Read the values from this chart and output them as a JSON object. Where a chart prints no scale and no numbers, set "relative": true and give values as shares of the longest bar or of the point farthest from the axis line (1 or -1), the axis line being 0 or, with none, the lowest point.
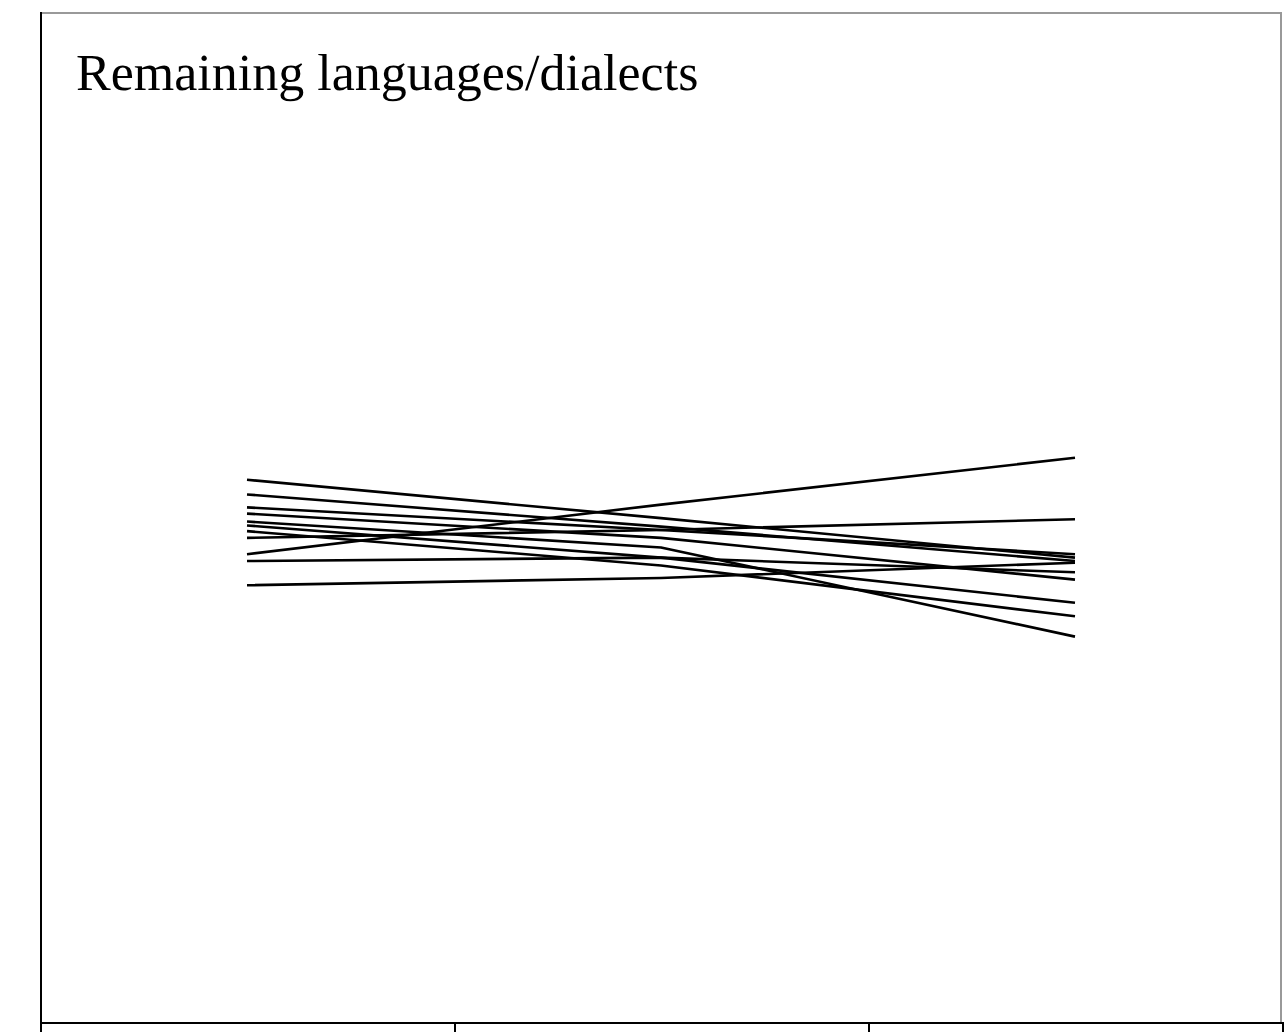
{
  "chart_data": {
    "type": "line",
    "title": "Remaining languages/dialects",
    "relative": true,
    "categories": [
      null,
      null,
      null
    ],
    "legend": false,
    "marker": "none",
    "line_style": "solid",
    "series": [
      {
        "color": "#000000",
        "values": [
          0.961,
          0.893,
          0.823
        ]
      },
      {
        "color": "#000000",
        "values": [
          0.935,
          0.878,
          0.817
        ]
      },
      {
        "color": "#000000",
        "values": [
          0.912,
          0.872,
          0.829
        ]
      },
      {
        "color": "#000000",
        "values": [
          0.901,
          0.858,
          0.784
        ]
      },
      {
        "color": "#000000",
        "values": [
          0.887,
          0.841,
          0.683
        ]
      },
      {
        "color": "#000000",
        "values": [
          0.88,
          0.823,
          0.743
        ]
      },
      {
        "color": "#000000",
        "values": [
          0.87,
          0.809,
          0.719
        ]
      },
      {
        "color": "#000000",
        "values": [
          0.858,
          0.872,
          0.891
        ]
      },
      {
        "color": "#000000",
        "values": [
          0.829,
          0.917,
          1
        ]
      },
      {
        "color": "#000000",
        "values": [
          0.817,
          0.823,
          0.797
        ]
      },
      {
        "color": "#000000",
        "values": [
          0.774,
          0.787,
          0.814
        ]
      }
    ]
  }
}
